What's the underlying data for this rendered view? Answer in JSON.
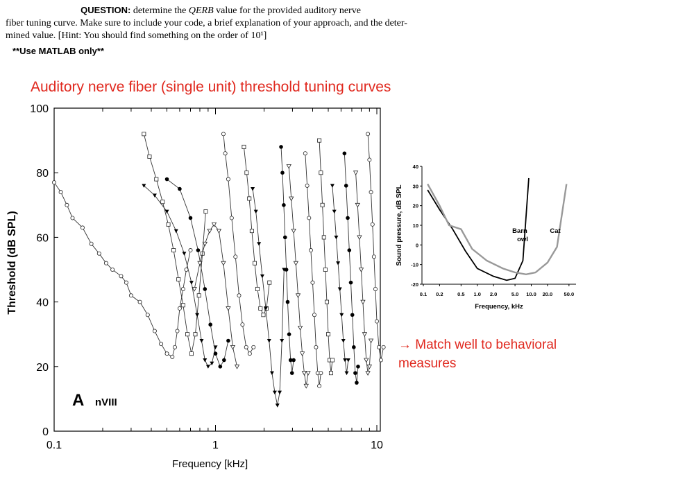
{
  "question": {
    "label": "QUESTION:",
    "line1_text": "determine the",
    "qerb_symbol": "QERB",
    "line1_rest": "value for the provided auditory nerve",
    "line2": "fiber tuning curve. Make sure to include your code, a brief explanation of your approach, and the deter-",
    "line3": "mined value. [Hint: You should find something on the order of 10¹]",
    "matlab_note": "**Use MATLAB only**"
  },
  "left_chart_title": "Auditory nerve fiber (single unit) threshold tuning curves",
  "match_note": "→ Match well to behavioral measures",
  "colors": {
    "accent_red": "#e0281e",
    "barn_owl_line": "#000000",
    "cat_line": "#999999"
  },
  "chart_data": [
    {
      "type": "line",
      "panel_label": "A",
      "panel_sublabel": "nVIII",
      "xlabel": "Frequency [kHz]",
      "ylabel": "Threshold (dB SPL)",
      "xscale": "log",
      "xlim": [
        0.1,
        15
      ],
      "ylim": [
        0,
        100
      ],
      "xticks": [
        "0.1",
        "1",
        "10"
      ],
      "yticks": [
        "0",
        "20",
        "40",
        "60",
        "80",
        "100"
      ],
      "series": [
        {
          "x": [
            0.1,
            0.11,
            0.12,
            0.13,
            0.15,
            0.17,
            0.19,
            0.21,
            0.23,
            0.26,
            0.28,
            0.3,
            0.34,
            0.38,
            0.42,
            0.46,
            0.5,
            0.54,
            0.56,
            0.58,
            0.6,
            0.63,
            0.66,
            0.7
          ],
          "y": [
            77,
            74,
            70,
            66,
            63,
            58,
            55,
            52,
            50,
            48,
            46,
            42,
            40,
            36,
            31,
            27,
            24,
            23,
            26,
            31,
            38,
            44,
            50,
            56
          ]
        },
        {
          "x": [
            0.36,
            0.39,
            0.43,
            0.47,
            0.51,
            0.55,
            0.59,
            0.63,
            0.67,
            0.71,
            0.75,
            0.79,
            0.83,
            0.87
          ],
          "y": [
            92,
            85,
            78,
            71,
            64,
            56,
            47,
            39,
            30,
            24,
            30,
            42,
            55,
            68
          ]
        },
        {
          "x": [
            0.36,
            0.42,
            0.5,
            0.57,
            0.64,
            0.71,
            0.77,
            0.82,
            0.86,
            0.9,
            0.95,
            1.0
          ],
          "y": [
            76,
            73,
            68,
            62,
            55,
            46,
            36,
            28,
            22,
            20,
            21,
            26
          ]
        },
        {
          "x": [
            0.5,
            0.6,
            0.7,
            0.78,
            0.86,
            0.93,
            1.0,
            1.07,
            1.13,
            1.2
          ],
          "y": [
            78,
            75,
            66,
            56,
            44,
            33,
            24,
            20,
            22,
            28
          ]
        },
        {
          "x": [
            0.74,
            0.8,
            0.86,
            0.92,
            0.98,
            1.05,
            1.12,
            1.2,
            1.28,
            1.36
          ],
          "y": [
            44,
            52,
            58,
            62,
            64,
            62,
            52,
            38,
            26,
            20
          ]
        },
        {
          "x": [
            1.12,
            1.15,
            1.2,
            1.26,
            1.33,
            1.4,
            1.47,
            1.55,
            1.63,
            1.72
          ],
          "y": [
            92,
            86,
            78,
            66,
            54,
            42,
            33,
            26,
            24,
            26
          ]
        },
        {
          "x": [
            1.5,
            1.56,
            1.62,
            1.68,
            1.75,
            1.82,
            1.9,
            1.98,
            2.07,
            2.16
          ],
          "y": [
            88,
            80,
            72,
            62,
            52,
            44,
            38,
            36,
            38,
            46
          ]
        },
        {
          "x": [
            1.7,
            1.78,
            1.86,
            1.95,
            2.05,
            2.15,
            2.24,
            2.33,
            2.42,
            2.5,
            2.58,
            2.66
          ],
          "y": [
            75,
            68,
            58,
            48,
            38,
            28,
            18,
            12,
            8,
            12,
            28,
            50
          ]
        },
        {
          "x": [
            2.55,
            2.6,
            2.65,
            2.7,
            2.75,
            2.8,
            2.86,
            2.92,
            2.98,
            3.05
          ],
          "y": [
            88,
            80,
            70,
            60,
            50,
            40,
            30,
            22,
            18,
            22
          ]
        },
        {
          "x": [
            2.85,
            2.95,
            3.05,
            3.15,
            3.25,
            3.35,
            3.45,
            3.55,
            3.65,
            3.75
          ],
          "y": [
            82,
            72,
            62,
            52,
            42,
            32,
            24,
            18,
            14,
            18
          ]
        },
        {
          "x": [
            3.6,
            3.7,
            3.8,
            3.9,
            4.0,
            4.1,
            4.2,
            4.3,
            4.4,
            4.5
          ],
          "y": [
            86,
            76,
            66,
            56,
            46,
            36,
            26,
            18,
            14,
            18
          ]
        },
        {
          "x": [
            4.4,
            4.5,
            4.6,
            4.7,
            4.8,
            4.9,
            5.0,
            5.1,
            5.2,
            5.3
          ],
          "y": [
            90,
            80,
            70,
            60,
            50,
            40,
            30,
            22,
            18,
            22
          ]
        },
        {
          "x": [
            5.3,
            5.45,
            5.6,
            5.75,
            5.9,
            6.05,
            6.2,
            6.35,
            6.5,
            6.65
          ],
          "y": [
            76,
            68,
            60,
            52,
            44,
            36,
            28,
            22,
            18,
            22
          ]
        },
        {
          "x": [
            6.3,
            6.45,
            6.6,
            6.75,
            6.9,
            7.05,
            7.2,
            7.35,
            7.5,
            7.65
          ],
          "y": [
            86,
            76,
            66,
            56,
            46,
            36,
            26,
            18,
            15,
            20
          ]
        },
        {
          "x": [
            7.4,
            7.6,
            7.8,
            8.0,
            8.2,
            8.4,
            8.6,
            8.8,
            9.0,
            9.2
          ],
          "y": [
            80,
            70,
            60,
            50,
            40,
            30,
            22,
            18,
            20,
            28
          ]
        },
        {
          "x": [
            8.8,
            9.0,
            9.2,
            9.4,
            9.6,
            9.8,
            10.0,
            10.3,
            10.6,
            11.0
          ],
          "y": [
            92,
            84,
            74,
            64,
            54,
            44,
            34,
            26,
            22,
            26
          ]
        }
      ]
    },
    {
      "type": "line",
      "xlabel": "Frequency, kHz",
      "ylabel": "Sound pressure, dB SPL",
      "xscale": "log",
      "xlim": [
        0.1,
        60
      ],
      "ylim": [
        -20,
        40
      ],
      "xticks": [
        "0.1",
        "0.2",
        "0.5",
        "1.0",
        "2.0",
        "5.0",
        "10.0",
        "20.0",
        "50.0"
      ],
      "yticks": [
        "40",
        "30",
        "20",
        "10",
        "0",
        "-10",
        "-20"
      ],
      "series": [
        {
          "name": "Barn owl",
          "color": "#000000",
          "x": [
            0.12,
            0.2,
            0.35,
            0.6,
            1.0,
            2.0,
            3.5,
            5.0,
            7.0,
            9.0
          ],
          "y": [
            28,
            18,
            8,
            -3,
            -12,
            -16,
            -18,
            -17,
            -8,
            34
          ]
        },
        {
          "name": "Cat",
          "color": "#999999",
          "x": [
            0.12,
            0.2,
            0.3,
            0.5,
            0.8,
            1.5,
            3.0,
            5.0,
            8.0,
            12.0,
            20.0,
            30.0,
            45.0
          ],
          "y": [
            31,
            20,
            10,
            8,
            -2,
            -8,
            -12,
            -14,
            -15,
            -14,
            -9,
            -1,
            31
          ]
        }
      ]
    }
  ]
}
